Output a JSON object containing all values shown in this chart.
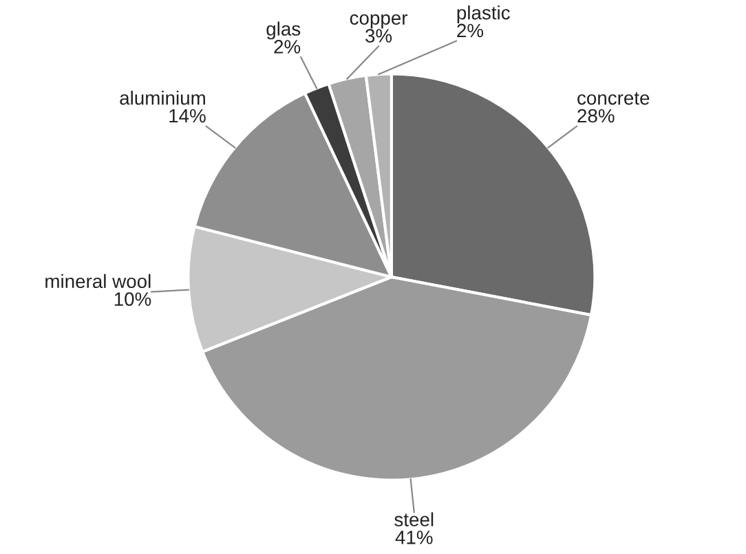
{
  "chart_data": {
    "type": "pie",
    "categories": [
      "concrete",
      "steel",
      "mineral wool",
      "aluminium",
      "glas",
      "copper",
      "plastic"
    ],
    "values": [
      28,
      41,
      10,
      14,
      2,
      3,
      2
    ],
    "value_labels": [
      "28%",
      "41%",
      "10%",
      "14%",
      "2%",
      "3%",
      "2%"
    ],
    "colors": [
      "#6a6a6a",
      "#9b9b9b",
      "#c6c6c6",
      "#8e8e8e",
      "#3c3c3c",
      "#a6a6a6",
      "#b2b2b2"
    ]
  }
}
